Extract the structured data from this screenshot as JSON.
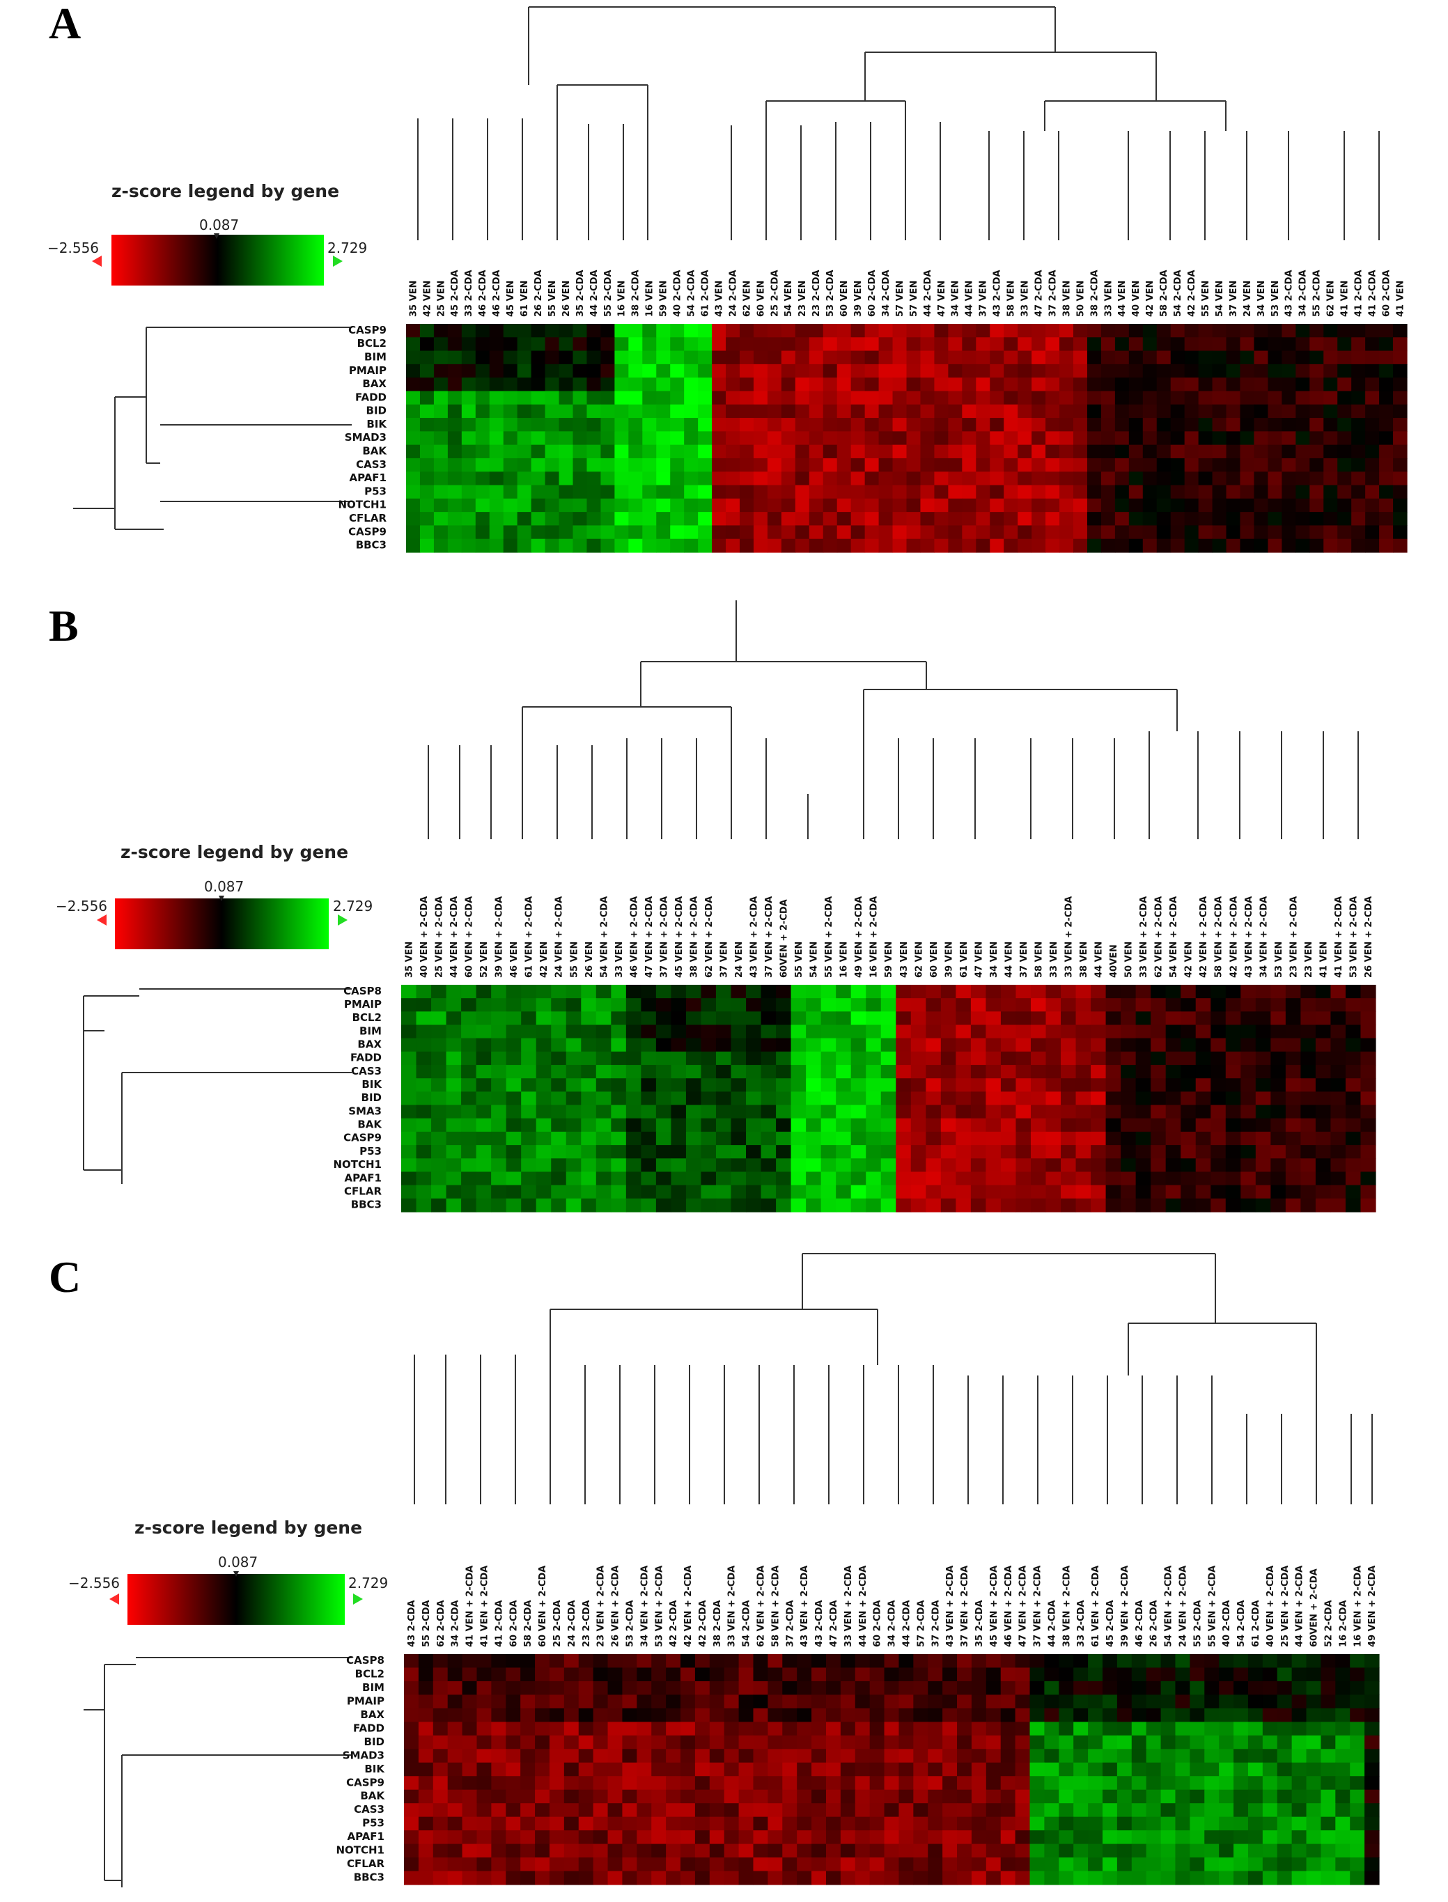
{
  "legend": {
    "title": "z-score legend by gene",
    "min_label": "−2.556",
    "mid_label": "0.087",
    "max_label": "2.729",
    "min": -2.556,
    "mid": 0.087,
    "max": 2.729,
    "colors": {
      "low": "#ff0000",
      "mid": "#000000",
      "high": "#00ff00"
    }
  },
  "chart_data": [
    {
      "type": "heatmap",
      "panel_label": "A",
      "legend_title": "z-score legend by gene",
      "color_scale": {
        "min": -2.556,
        "mid": 0.087,
        "max": 2.729
      },
      "rows": [
        "CASP9",
        "BCL2",
        "BIM",
        "PMAIP",
        "BAX",
        "FADD",
        "BID",
        "BIK",
        "SMAD3",
        "BAK",
        "CAS3",
        "APAF1",
        "P53",
        "NOTCH1",
        "CFLAR",
        "CASP9",
        "BBC3"
      ],
      "columns": [
        "35 VEN",
        "42 VEN",
        "25 VEN",
        "45 2-CDA",
        "33 2-CDA",
        "46 2-CDA",
        "46 2-CDA",
        "45 VEN",
        "61 VEN",
        "26 2-CDA",
        "55 VEN",
        "26 VEN",
        "35 2-CDA",
        "44 2-CDA",
        "55 2-CDA",
        "16 VEN",
        "38 2-CDA",
        "16 VEN",
        "59 VEN",
        "40 2-CDA",
        "54 2-CDA",
        "61 2-CDA",
        "43 VEN",
        "24 2-CDA",
        "62 VEN",
        "60 VEN",
        "25 2-CDA",
        "54 VEN",
        "23 VEN",
        "23 2-CDA",
        "53 2-CDA",
        "60 VEN",
        "39 VEN",
        "60 2-CDA",
        "34 2-CDA",
        "57 VEN",
        "57 VEN",
        "44 2-CDA",
        "47 VEN",
        "34 VEN",
        "44 VEN",
        "37 VEN",
        "43 2-CDA",
        "58 VEN",
        "33 VEN",
        "47 2-CDA",
        "37 2-CDA",
        "38 VEN",
        "50 VEN",
        "38 2-CDA",
        "33 VEN",
        "44 VEN",
        "40 VEN",
        "42 VEN",
        "58 2-CDA",
        "54 2-CDA",
        "42 2-CDA",
        "55 VEN",
        "54 VEN",
        "37 VEN",
        "24 VEN",
        "34 VEN",
        "53 VEN",
        "43 2-CDA",
        "34 2-CDA",
        "55 2-CDA",
        "62 VEN",
        "41 VEN",
        "41 2-CDA",
        "41 2-CDA",
        "60 2-CDA",
        "41 VEN"
      ],
      "blocks": [
        {
          "columns": [
            0,
            15
          ],
          "rows": [
            0,
            4
          ],
          "zscore": 0.2
        },
        {
          "columns": [
            0,
            15
          ],
          "rows": [
            5,
            16
          ],
          "zscore": 1.6
        },
        {
          "columns": [
            15,
            22
          ],
          "rows": [
            0,
            16
          ],
          "zscore": 2.2
        },
        {
          "columns": [
            22,
            49
          ],
          "rows": [
            0,
            16
          ],
          "zscore": -1.5
        },
        {
          "columns": [
            49,
            72
          ],
          "rows": [
            0,
            16
          ],
          "zscore": -0.3
        }
      ]
    },
    {
      "type": "heatmap",
      "panel_label": "B",
      "legend_title": "z-score legend by gene",
      "color_scale": {
        "min": -2.556,
        "mid": 0.087,
        "max": 2.729
      },
      "rows": [
        "CASP8",
        "PMAIP",
        "BCL2",
        "BIM",
        "BAX",
        "FADD",
        "CAS3",
        "BIK",
        "BID",
        "SMA3",
        "BAK",
        "CASP9",
        "P53",
        "NOTCH1",
        "APAF1",
        "CFLAR",
        "BBC3"
      ],
      "columns": [
        "35 VEN",
        "40 VEN + 2-CDA",
        "25 VEN + 2-CDA",
        "44 VEN + 2-CDA",
        "60 VEN + 2-CDA",
        "52 VEN",
        "39 VEN + 2-CDA",
        "46 VEN",
        "61 VEN + 2-CDA",
        "42 VEN",
        "24 VEN + 2-CDA",
        "55 VEN",
        "26 VEN",
        "54 VEN + 2-CDA",
        "33 VEN",
        "46 VEN + 2-CDA",
        "47 VEN + 2-CDA",
        "37 VEN + 2-CDA",
        "45 VEN + 2-CDA",
        "38 VEN + 2-CDA",
        "62 VEN + 2-CDA",
        "37 VEN",
        "24 VEN",
        "43 VEN + 2-CDA",
        "37 VEN + 2-CDA",
        "60VEN + 2-CDA",
        "55 VEN",
        "54 VEN",
        "55 VEN + 2-CDA",
        "16 VEN",
        "49 VEN + 2-CDA",
        "16 VEN + 2-CDA",
        "59 VEN",
        "43 VEN",
        "62 VEN",
        "60 VEN",
        "39 VEN",
        "61 VEN",
        "47 VEN",
        "34 VEN",
        "44 VEN",
        "37 VEN",
        "58 VEN",
        "33 VEN",
        "33 VEN + 2-CDA",
        "38 VEN",
        "44 VEN",
        "40VEN",
        "50 VEN",
        "33 VEN + 2-CDA",
        "62 VEN + 2-CDA",
        "54 VEN + 2-CDA",
        "42 VEN",
        "42 VEN + 2-CDA",
        "58 VEN + 2-CDA",
        "42 VEN + 2-CDA",
        "43 VEN + 2-CDA",
        "34 VEN + 2-CDA",
        "53 VEN",
        "23 VEN + 2-CDA",
        "23 VEN",
        "41 VEN",
        "41 VEN + 2-CDA",
        "53 VEN + 2-CDA",
        "26 VEN + 2-CDA"
      ],
      "blocks": [
        {
          "columns": [
            0,
            15
          ],
          "rows": [
            0,
            16
          ],
          "zscore": 1.4
        },
        {
          "columns": [
            15,
            26
          ],
          "rows": [
            0,
            4
          ],
          "zscore": 0.3
        },
        {
          "columns": [
            15,
            26
          ],
          "rows": [
            5,
            16
          ],
          "zscore": 0.9
        },
        {
          "columns": [
            26,
            33
          ],
          "rows": [
            0,
            16
          ],
          "zscore": 2.1
        },
        {
          "columns": [
            33,
            47
          ],
          "rows": [
            0,
            16
          ],
          "zscore": -1.5
        },
        {
          "columns": [
            47,
            65
          ],
          "rows": [
            0,
            16
          ],
          "zscore": -0.4
        }
      ]
    },
    {
      "type": "heatmap",
      "panel_label": "C",
      "legend_title": "z-score legend by gene",
      "color_scale": {
        "min": -2.556,
        "mid": 0.087,
        "max": 2.729
      },
      "rows": [
        "CASP8",
        "BCL2",
        "BIM",
        "PMAIP",
        "BAX",
        "FADD",
        "BID",
        "SMAD3",
        "BIK",
        "CASP9",
        "BAK",
        "CAS3",
        "P53",
        "APAF1",
        "NOTCH1",
        "CFLAR",
        "BBC3"
      ],
      "columns": [
        "43 2-CDA",
        "55 2-CDA",
        "62 2-CDA",
        "34 2-CDA",
        "41 VEN + 2-CDA",
        "41 VEN + 2-CDA",
        "41 2-CDA",
        "60 2-CDA",
        "58 2-CDA",
        "60 VEN + 2-CDA",
        "25 2-CDA",
        "24 2-CDA",
        "23 2-CDA",
        "23 VEN + 2-CDA",
        "26 VEN + 2-CDA",
        "53 2-CDA",
        "34 VEN + 2-CDA",
        "53 VEN + 2-CDA",
        "42 2-CDA",
        "42 VEN + 2-CDA",
        "42 2-CDA",
        "38 2-CDA",
        "33 VEN + 2-CDA",
        "54 2-CDA",
        "62 VEN + 2-CDA",
        "58 VEN + 2-CDA",
        "37 2-CDA",
        "43 VEN + 2-CDA",
        "43 2-CDA",
        "47 2-CDA",
        "33 VEN + 2-CDA",
        "44 VEN + 2-CDA",
        "60 2-CDA",
        "34 2-CDA",
        "44 2-CDA",
        "57 2-CDA",
        "37 2-CDA",
        "43 VEN + 2-CDA",
        "37 VEN + 2-CDA",
        "35 2-CDA",
        "45 VEN + 2-CDA",
        "46 VEN + 2-CDA",
        "47 VEN + 2-CDA",
        "37 VEN + 2-CDA",
        "44 2-CDA",
        "38 VEN + 2-CDA",
        "33 2-CDA",
        "61 VEN + 2-CDA",
        "45 2-CDA",
        "39 VEN + 2-CDA",
        "46 2-CDA",
        "26 2-CDA",
        "54 VEN + 2-CDA",
        "24 VEN + 2-CDA",
        "55 2-CDA",
        "55 VEN + 2-CDA",
        "40 2-CDA",
        "54 2-CDA",
        "61 2-CDA",
        "40 VEN + 2-CDA",
        "25 VEN + 2-CDA",
        "44 VEN + 2-CDA",
        "60VEN + 2-CDA",
        "52 2-CDA",
        "16 2-CDA",
        "16 VEN + 2-CDA",
        "49 VEN + 2-CDA"
      ],
      "blocks": [
        {
          "columns": [
            0,
            43
          ],
          "rows": [
            0,
            4
          ],
          "zscore": -0.6
        },
        {
          "columns": [
            0,
            43
          ],
          "rows": [
            5,
            16
          ],
          "zscore": -1.2
        },
        {
          "columns": [
            43,
            66
          ],
          "rows": [
            0,
            4
          ],
          "zscore": 0.2
        },
        {
          "columns": [
            43,
            66
          ],
          "rows": [
            5,
            16
          ],
          "zscore": 1.5
        }
      ]
    }
  ]
}
